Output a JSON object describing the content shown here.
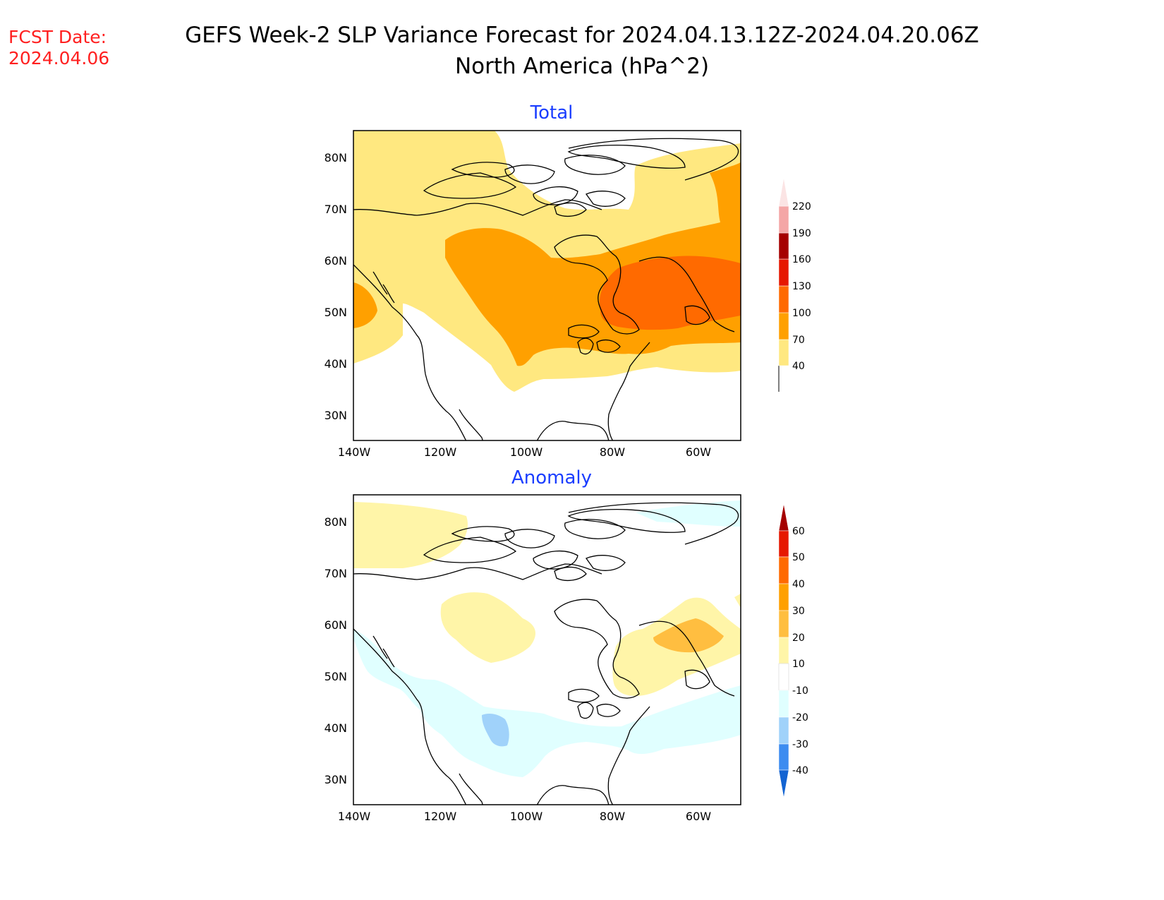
{
  "header": {
    "fcst_label": "FCST Date:",
    "fcst_date": "2024.04.06",
    "title": "GEFS Week-2 SLP Variance Forecast for 2024.04.13.12Z-2024.04.20.06Z",
    "subtitle": "North America (hPa^2)"
  },
  "panels": [
    {
      "title": "Total",
      "lat_labels": [
        "80N",
        "70N",
        "60N",
        "50N",
        "40N",
        "30N"
      ],
      "lon_labels": [
        "140W",
        "120W",
        "100W",
        "80W",
        "60W"
      ],
      "colorbar": {
        "labels": [
          "40",
          "70",
          "100",
          "130",
          "160",
          "190",
          "220"
        ],
        "colors": [
          "#ffe880",
          "#ffa000",
          "#ff6a00",
          "#e61800",
          "#a50000",
          "#f4a6a6",
          "#fbe4e4"
        ]
      }
    },
    {
      "title": "Anomaly",
      "lat_labels": [
        "80N",
        "70N",
        "60N",
        "50N",
        "40N",
        "30N"
      ],
      "lon_labels": [
        "140W",
        "120W",
        "100W",
        "80W",
        "60W"
      ],
      "colorbar": {
        "labels": [
          "60",
          "50",
          "40",
          "30",
          "20",
          "10",
          "-10",
          "-20",
          "-30",
          "-40"
        ],
        "colors": [
          "#a50000",
          "#e61800",
          "#ff6a00",
          "#ffa000",
          "#ffbe40",
          "#fff5a8",
          "#ffffff",
          "#e0ffff",
          "#a0d2fa",
          "#3d8cf0",
          "#1464d2"
        ]
      }
    }
  ]
}
